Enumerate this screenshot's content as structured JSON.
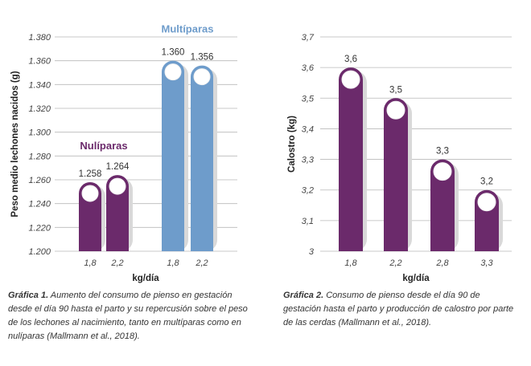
{
  "chart_data": [
    {
      "type": "bar",
      "ylabel": "Peso medio lechones nacidos (g)",
      "xlabel": "kg/día",
      "ylim": [
        1.2,
        1.38
      ],
      "yticks": [
        "1.200",
        "1.220",
        "1.240",
        "1.260",
        "1.280",
        "1.300",
        "1.320",
        "1.340",
        "1.360",
        "1.380"
      ],
      "grid": true,
      "groups": [
        {
          "name": "Nulíparas",
          "color": "#6b2a6b",
          "categories": [
            "1,8",
            "2,2"
          ],
          "values": [
            1.258,
            1.264
          ],
          "labels": [
            "1.258",
            "1.264"
          ]
        },
        {
          "name": "Multíparas",
          "color": "#6e9ccb",
          "categories": [
            "1,8",
            "2,2"
          ],
          "values": [
            1.36,
            1.356
          ],
          "labels": [
            "1.360",
            "1.356"
          ]
        }
      ]
    },
    {
      "type": "bar",
      "ylabel": "Calostro (kg)",
      "xlabel": "kg/día",
      "ylim": [
        3.0,
        3.7
      ],
      "yticks": [
        "3",
        "3,1",
        "3,2",
        "3,3",
        "3,4",
        "3,5",
        "3,6",
        "3,7"
      ],
      "grid": true,
      "color": "#6b2a6b",
      "categories": [
        "1,8",
        "2,2",
        "2,8",
        "3,3"
      ],
      "values": [
        3.6,
        3.5,
        3.3,
        3.2
      ],
      "labels": [
        "3,6",
        "3,5",
        "3,3",
        "3,2"
      ]
    }
  ],
  "captions": [
    {
      "label": "Gráfica 1.",
      "text": "Aumento del consumo de pienso en gestación desde el día 90 hasta el parto y su repercusión sobre el peso de los lechones al nacimiento, tanto en multíparas como en nulíparas (Mallmann et al., 2018)."
    },
    {
      "label": "Gráfica 2.",
      "text": "Consumo de pienso desde el día 90 de gestación hasta el parto y producción de calostro por parte de las cerdas (Mallmann et al., 2018)."
    }
  ]
}
